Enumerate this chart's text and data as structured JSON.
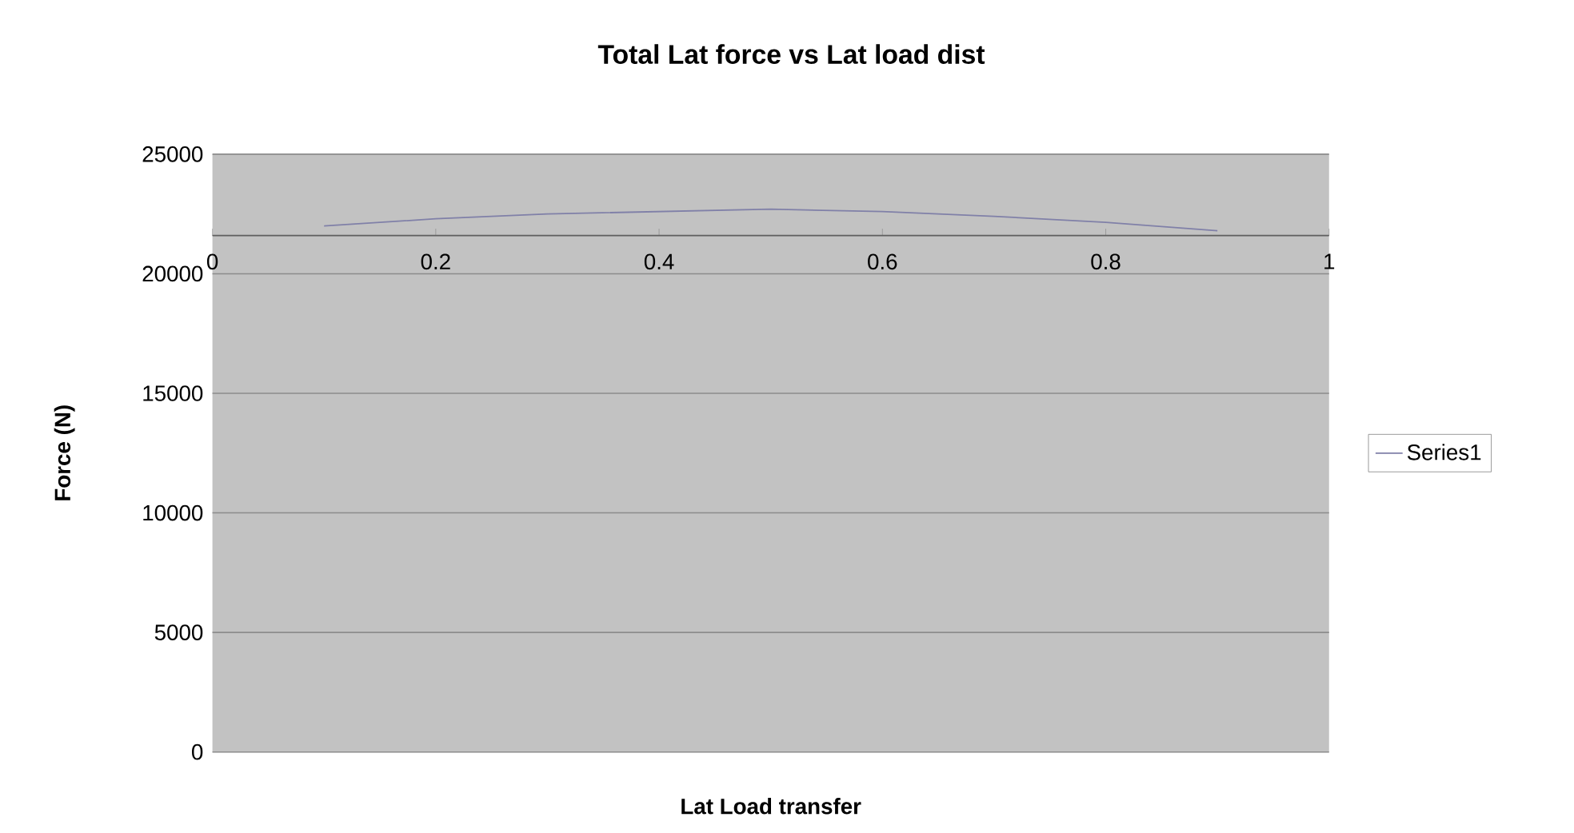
{
  "chart_data": {
    "type": "line",
    "title": "Total Lat force vs Lat load dist",
    "xlabel": "Lat Load transfer",
    "ylabel": "Force (N)",
    "x": [
      0.1,
      0.2,
      0.3,
      0.4,
      0.5,
      0.6,
      0.7,
      0.8,
      0.9
    ],
    "series": [
      {
        "name": "Series1",
        "color": "#8080a8",
        "values": [
          22000,
          22300,
          22500,
          22600,
          22700,
          22600,
          22400,
          22150,
          21800
        ]
      }
    ],
    "xlim": [
      0,
      1
    ],
    "xticks": [
      0,
      0.2,
      0.4,
      0.6,
      0.8,
      1
    ],
    "ylim": [
      0,
      25000
    ],
    "yticks": [
      0,
      5000,
      10000,
      15000,
      20000,
      25000
    ],
    "ref_lines": [
      {
        "axis": "y",
        "value": 21600,
        "color": "#606060"
      }
    ],
    "grid": "y",
    "legend": "right",
    "marker": "none",
    "line_style": "solid"
  }
}
